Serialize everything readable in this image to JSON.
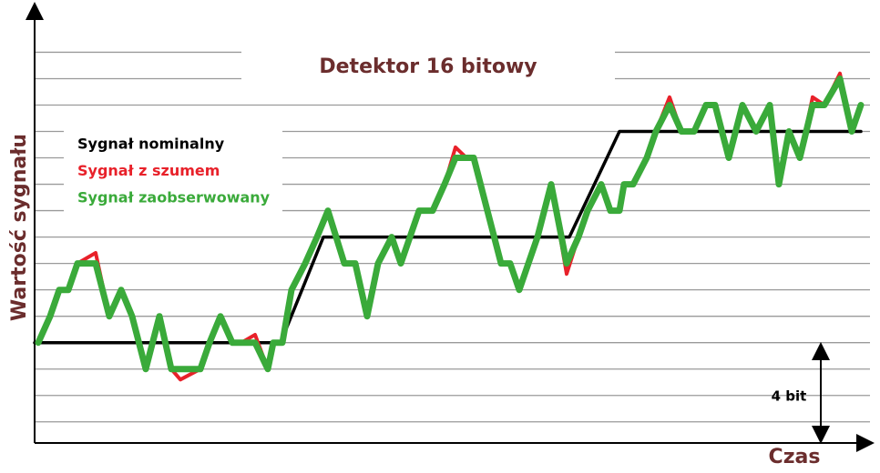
{
  "chart_data": {
    "type": "line",
    "title": "Detektor 16 bitowy",
    "x_label": "Czas",
    "y_label": "Wartość sygnału",
    "annotation": "4 bit",
    "xlim": [
      0,
      920
    ],
    "ylim": [
      0.2,
      16.6
    ],
    "yticks": [
      1,
      2,
      3,
      4,
      5,
      6,
      7,
      8,
      9,
      10,
      11,
      12,
      13,
      14,
      15
    ],
    "grid": true,
    "series": [
      {
        "name": "Sygnał nominalny",
        "color": "#000000",
        "x": [
          0,
          270,
          317,
          587,
          642,
          907
        ],
        "values": [
          4,
          4,
          8,
          8,
          12,
          12
        ]
      },
      {
        "name": "Sygnał z szumem",
        "color": "#e8212a",
        "x": [
          4,
          17,
          27,
          37,
          47,
          67,
          82,
          95,
          107,
          122,
          137,
          150,
          160,
          182,
          192,
          204,
          217,
          227,
          242,
          256,
          262,
          272,
          282,
          297,
          310,
          322,
          340,
          352,
          365,
          377,
          392,
          402,
          412,
          422,
          437,
          450,
          462,
          474,
          482,
          497,
          512,
          522,
          532,
          542,
          552,
          567,
          584,
          597,
          607,
          622,
          632,
          642,
          647,
          657,
          672,
          682,
          697,
          710,
          724,
          737,
          747,
          762,
          777,
          792,
          807,
          817,
          828,
          840,
          854,
          867,
          884,
          897,
          907
        ],
        "values": [
          4,
          5,
          6,
          6,
          7,
          7.4,
          5,
          6,
          5,
          3,
          5,
          3,
          2.6,
          3,
          4,
          5,
          4,
          4,
          4.3,
          3,
          4,
          4,
          6,
          7,
          8,
          9,
          7,
          7,
          5,
          7,
          8,
          7,
          8,
          9,
          9,
          10,
          11.4,
          11,
          11,
          9,
          7,
          7,
          6,
          7,
          8,
          10,
          6.6,
          8,
          9,
          10,
          9,
          9,
          10,
          10,
          11,
          12,
          13.3,
          12,
          12,
          13,
          13,
          11,
          13,
          12,
          13,
          10,
          12,
          11,
          13.3,
          13,
          14.2,
          12,
          13
        ]
      },
      {
        "name": "Sygnał zaobserwowany",
        "color": "#3aaa3a",
        "x": [
          4,
          17,
          27,
          37,
          47,
          67,
          82,
          95,
          107,
          122,
          137,
          150,
          160,
          182,
          192,
          204,
          217,
          227,
          242,
          256,
          262,
          272,
          282,
          297,
          310,
          322,
          340,
          352,
          365,
          377,
          392,
          402,
          412,
          422,
          437,
          450,
          462,
          474,
          482,
          497,
          512,
          522,
          532,
          542,
          552,
          567,
          584,
          597,
          607,
          622,
          632,
          642,
          647,
          657,
          672,
          682,
          697,
          710,
          724,
          737,
          747,
          762,
          777,
          792,
          807,
          817,
          828,
          840,
          854,
          867,
          884,
          897,
          907
        ],
        "values": [
          4,
          5,
          6,
          6,
          7,
          7,
          5,
          6,
          5,
          3,
          5,
          3,
          3,
          3,
          4,
          5,
          4,
          4,
          4,
          3,
          4,
          4,
          6,
          7,
          8,
          9,
          7,
          7,
          5,
          7,
          8,
          7,
          8,
          9,
          9,
          10,
          11,
          11,
          11,
          9,
          7,
          7,
          6,
          7,
          8,
          10,
          7,
          8,
          9,
          10,
          9,
          9,
          10,
          10,
          11,
          12,
          13,
          12,
          12,
          13,
          13,
          11,
          13,
          12,
          13,
          10,
          12,
          11,
          13,
          13,
          14,
          12,
          13
        ]
      }
    ]
  }
}
